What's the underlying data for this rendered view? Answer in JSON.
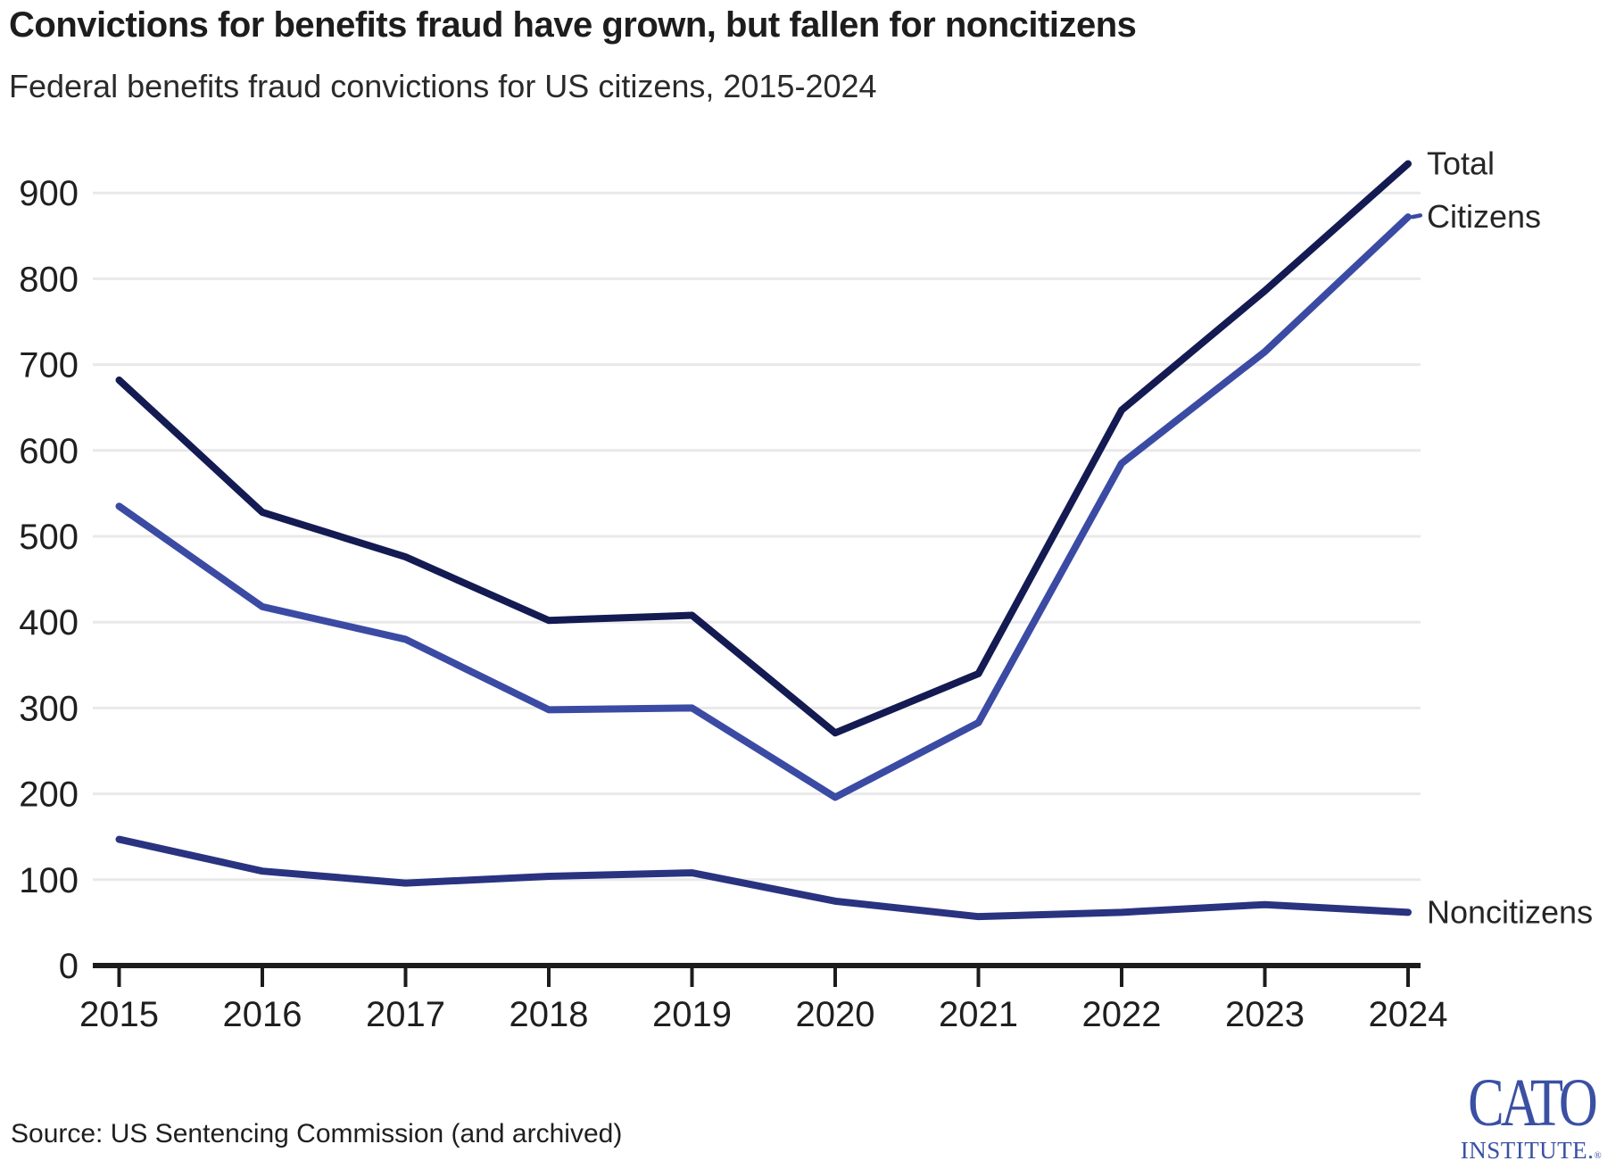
{
  "header": {
    "title": "Convictions for benefits fraud have grown, but fallen for noncitizens",
    "subtitle": "Federal benefits fraud convictions for US citizens, 2015-2024"
  },
  "chart_data": {
    "type": "line",
    "x": [
      2015,
      2016,
      2017,
      2018,
      2019,
      2020,
      2021,
      2022,
      2023,
      2024
    ],
    "title": "Convictions for benefits fraud have grown, but fallen for noncitizens",
    "subtitle": "Federal benefits fraud convictions for US citizens, 2015-2024",
    "xlabel": "",
    "ylabel": "",
    "ylim": [
      0,
      900
    ],
    "y_ticks": [
      0,
      100,
      200,
      300,
      400,
      500,
      600,
      700,
      800,
      900
    ],
    "grid": "horizontal-light",
    "legend_position": "right-end-labels",
    "series": [
      {
        "name": "Total",
        "color": "#141a52",
        "values": [
          682,
          528,
          476,
          402,
          408,
          271,
          340,
          647,
          786,
          934
        ]
      },
      {
        "name": "Citizens",
        "color": "#3b4ba4",
        "leader_dash": true,
        "values": [
          535,
          418,
          380,
          298,
          300,
          196,
          283,
          585,
          715,
          872
        ]
      },
      {
        "name": "Noncitizens",
        "color": "#2a3380",
        "values": [
          147,
          110,
          96,
          104,
          108,
          75,
          57,
          62,
          71,
          62
        ]
      }
    ]
  },
  "axis": {
    "color": "#1c1c1c",
    "gridline_color": "#e9e9e9",
    "tick_label_color": "#1f1f1f",
    "series_label_color": "#262626"
  },
  "source": {
    "text": "Source: US Sentencing Commission (and archived)"
  },
  "logo": {
    "main": "CATO",
    "sub": "INSTITUTE.",
    "reg": "®",
    "color": "#3a50a3"
  }
}
